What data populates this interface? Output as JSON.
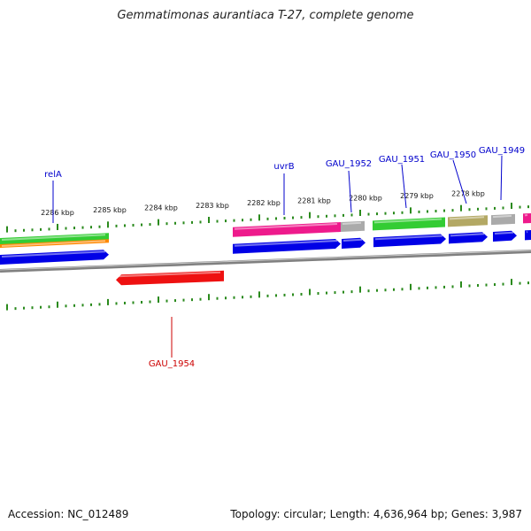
{
  "title": "Gemmatimonas aurantiaca T-27, complete genome",
  "accession": "Accession: NC_012489",
  "topology_info": "Topology: circular; Length: 4,636,964 bp; Genes: 3,987",
  "colors": {
    "backbone": "#808080",
    "tick": "#2a8a1c",
    "label_forward": "#0000cc",
    "label_reverse": "#cc0000",
    "gene_blue": "#0000e6",
    "gene_red": "#ee1111",
    "gene_pink": "#ee1a8c",
    "gene_green": "#33cc33",
    "gene_orange": "#ff8800",
    "gene_gray": "#aaaaaa",
    "gene_olive": "#b3a864"
  },
  "scale_labels": [
    "2286 kbp",
    "2285 kbp",
    "2284 kbp",
    "2283 kbp",
    "2282 kbp",
    "2281 kbp",
    "2280 kbp",
    "2279 kbp",
    "2278 kbp"
  ],
  "gene_labels": [
    {
      "name": "relA",
      "strand": "forward"
    },
    {
      "name": "uvrB",
      "strand": "forward"
    },
    {
      "name": "GAU_1952",
      "strand": "forward"
    },
    {
      "name": "GAU_1951",
      "strand": "forward"
    },
    {
      "name": "GAU_1950",
      "strand": "forward"
    },
    {
      "name": "GAU_1949",
      "strand": "forward"
    },
    {
      "name": "GAU_1954",
      "strand": "reverse"
    }
  ]
}
